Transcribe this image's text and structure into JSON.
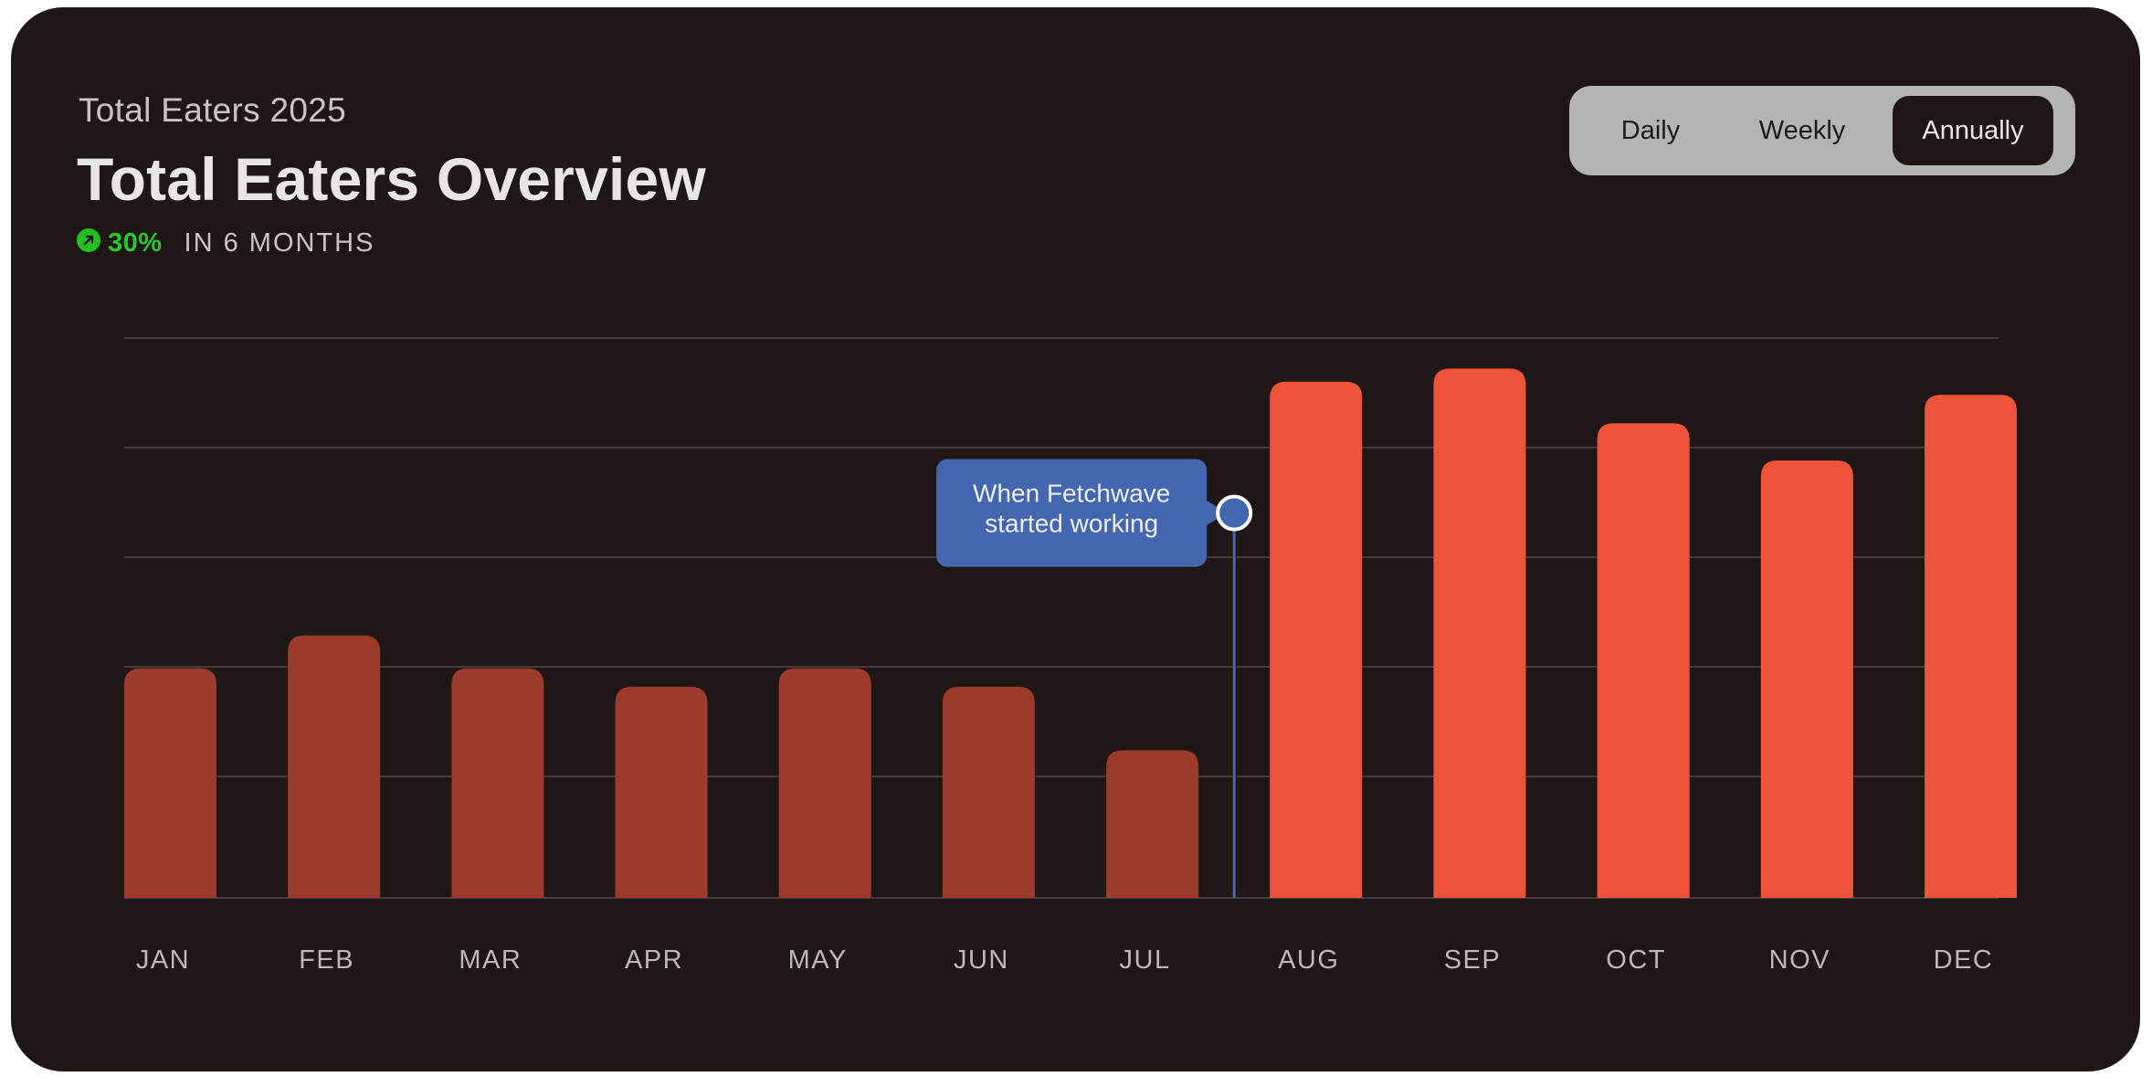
{
  "header": {
    "subtitle": "Total Eaters 2025",
    "title": "Total Eaters Overview",
    "growth_value": "30%",
    "growth_label": "IN 6 MONTHS"
  },
  "period_toggle": {
    "options": [
      "Daily",
      "Weekly",
      "Annually"
    ],
    "selected": "Annually"
  },
  "colors": {
    "background": "#1e1716",
    "bar_before": "#9c3a2c",
    "bar_after": "#ef543a",
    "annotation": "#4466b0",
    "growth": "#2ac62a",
    "gridline": "#4e4846"
  },
  "chart_data": {
    "type": "bar",
    "categories": [
      "JAN",
      "FEB",
      "MAR",
      "APR",
      "MAY",
      "JUN",
      "JUL",
      "AUG",
      "SEP",
      "OCT",
      "NOV",
      "DEC"
    ],
    "values": [
      210,
      240,
      210,
      193,
      210,
      193,
      135,
      472,
      484,
      434,
      400,
      460
    ],
    "ylim": [
      0,
      512
    ],
    "gridlines": 5,
    "annotation": {
      "text_line1": "When Fetchwave",
      "text_line2": "started working",
      "between": [
        "JUL",
        "AUG"
      ],
      "value": 352
    },
    "highlight_from": "AUG"
  }
}
